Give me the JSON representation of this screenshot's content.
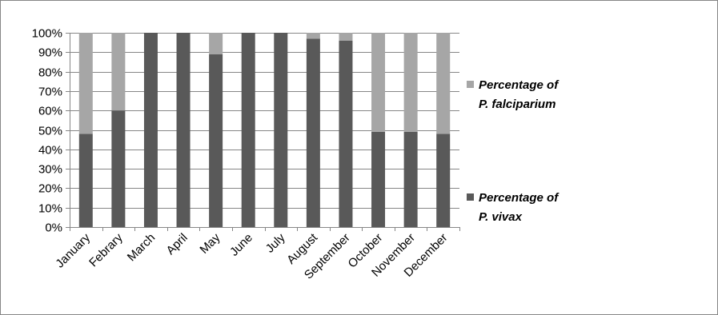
{
  "chart_data": {
    "type": "bar",
    "stacked": true,
    "categories": [
      "January",
      "Febrary",
      "March",
      "April",
      "May",
      "June",
      "July",
      "August",
      "September",
      "October",
      "November",
      "December"
    ],
    "series": [
      {
        "name": "Percentage of P. vivax",
        "name_lines": [
          "Percentage of",
          "P. vivax"
        ],
        "color": "#595959",
        "values": [
          48,
          60,
          100,
          100,
          89,
          100,
          100,
          97,
          96,
          49,
          49,
          48
        ]
      },
      {
        "name": "Percentage of P. falciparium",
        "name_lines": [
          "Percentage of",
          "P. falciparium"
        ],
        "color": "#a6a6a6",
        "values": [
          52,
          40,
          0,
          0,
          11,
          0,
          0,
          3,
          4,
          51,
          51,
          52
        ]
      }
    ],
    "yticks": [
      "0%",
      "10%",
      "20%",
      "30%",
      "40%",
      "50%",
      "60%",
      "70%",
      "80%",
      "90%",
      "100%"
    ],
    "ylim": [
      0,
      100
    ],
    "grid": true,
    "legend_position": "right",
    "title": "",
    "xlabel": "",
    "ylabel": ""
  }
}
